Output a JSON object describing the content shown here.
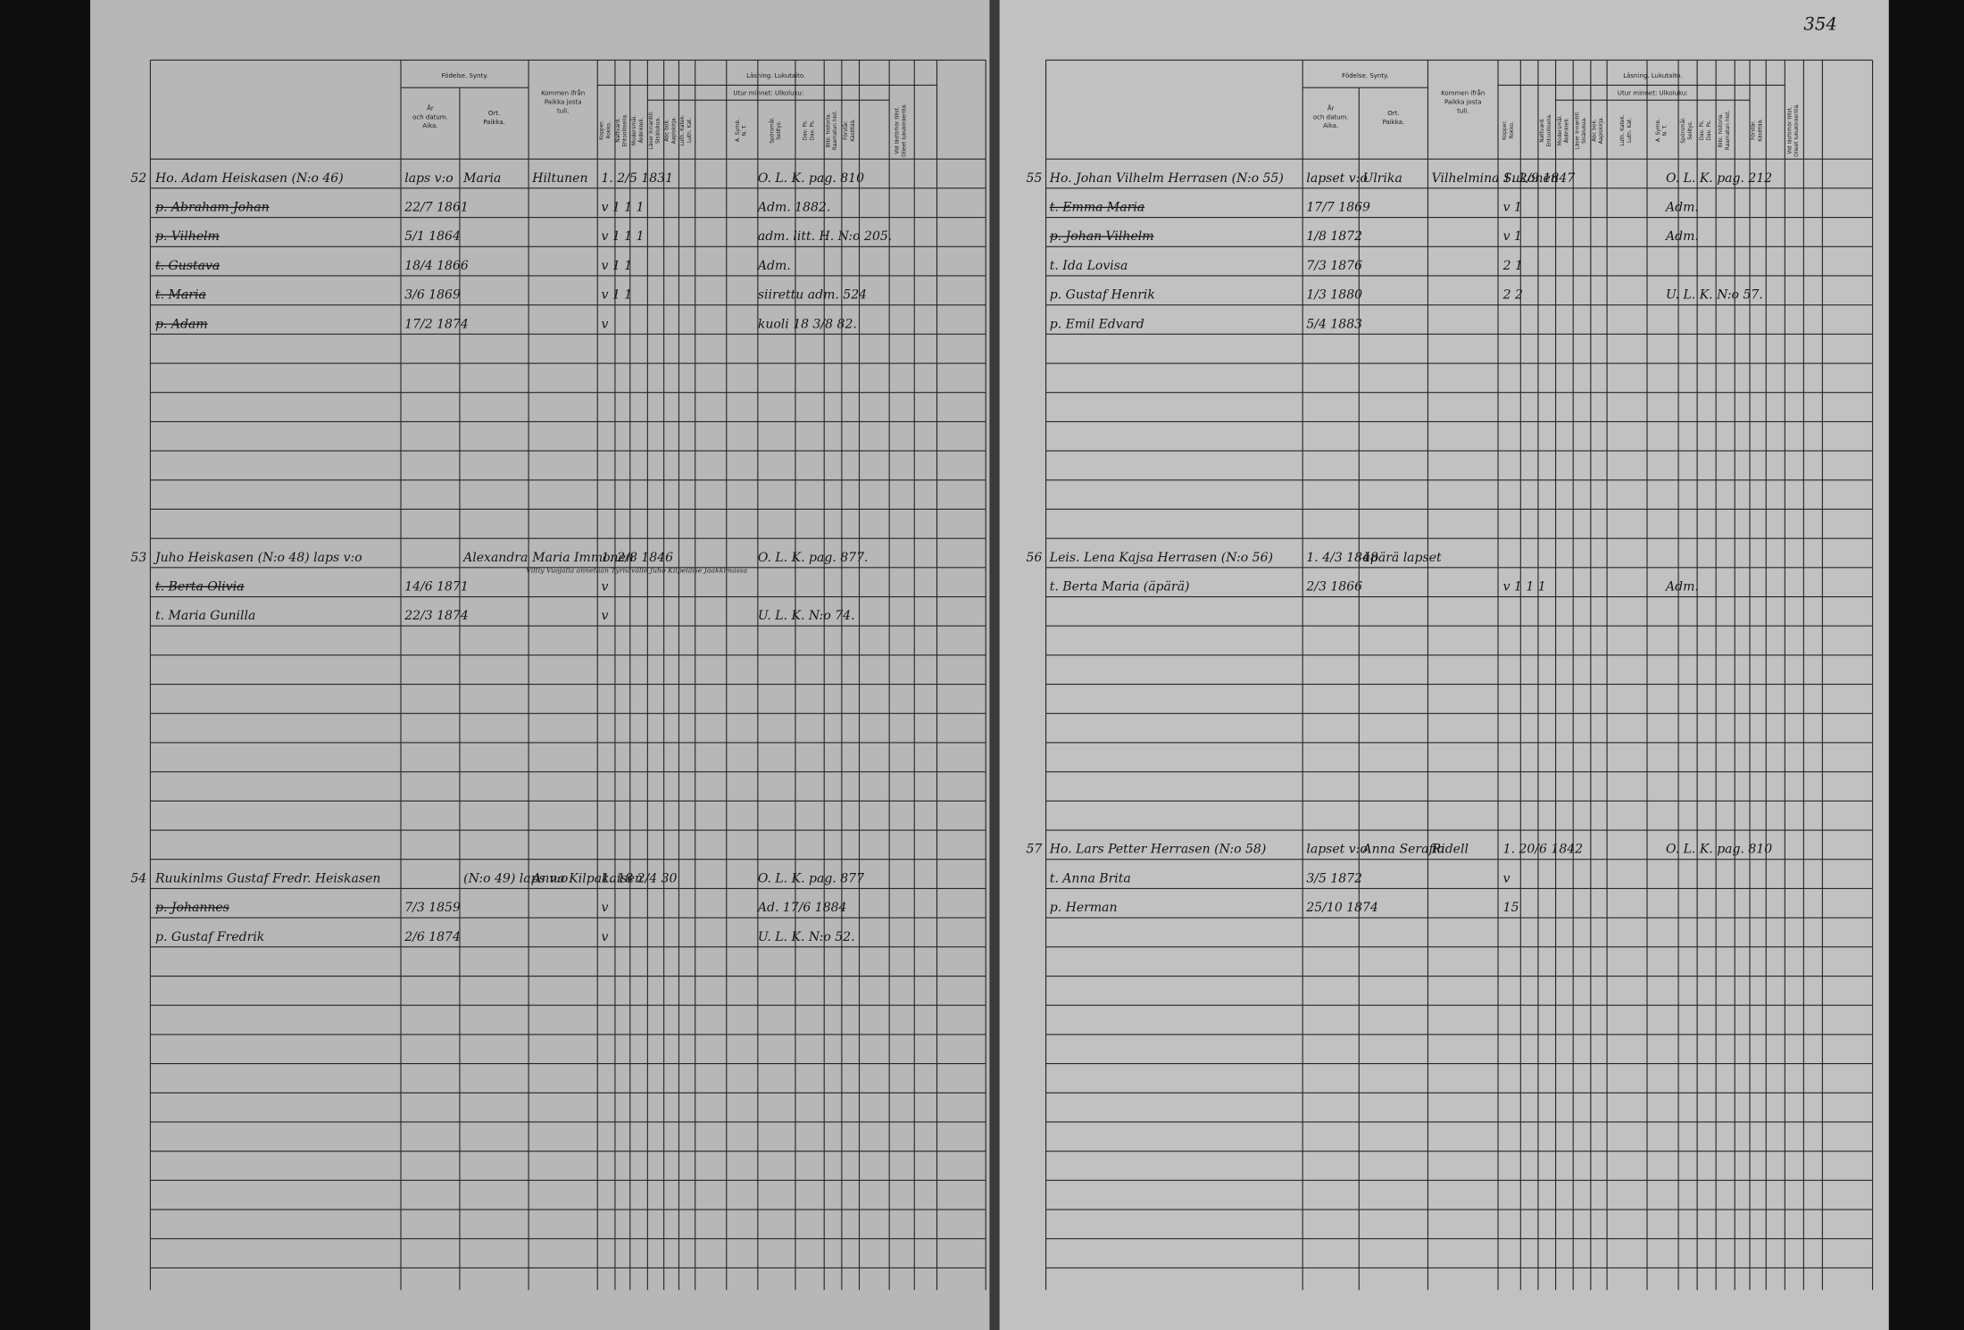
{
  "page_number": "354",
  "headers": {
    "birth": "Födelse. Synty.",
    "date": [
      "År",
      "och datum.",
      "Aika."
    ],
    "place": [
      "Ort.",
      "Paikka."
    ],
    "origin": [
      "Kommen ifrån",
      "Paikka josta",
      "tuli."
    ],
    "reading": "Läsning. Lukutaito.",
    "memory": "Utur minnet: Ulkoluku:",
    "vertical": [
      [
        "Kopper.",
        "Rokko."
      ],
      [
        "Nattvard.",
        "Ehtoollisella."
      ],
      [
        "Modersmål.",
        "Äidinkieli."
      ],
      [
        "Läser innantill.",
        "Sisälukua."
      ],
      [
        "Abc bok.",
        "Aapiskirja."
      ],
      [
        "Luth. Katek.",
        "Luth. Kat."
      ],
      [
        "A. Symb.",
        "N. T."
      ],
      [
        "Spörsmål.",
        "Selitys."
      ],
      [
        "Dav. Ps.",
        "Dav. Ps."
      ],
      [
        "Bibl. historia.",
        "Raamatun hist."
      ],
      [
        "Förstår.",
        "Käsittää."
      ],
      [
        "Vid läsförhör tillst.",
        "Olleet lukukinkerillä."
      ]
    ]
  },
  "left_page": {
    "entries": [
      {
        "number": "52",
        "rows": [
          {
            "name": "Ho. Adam Heiskasen (N:o 46)",
            "date": "laps v:o",
            "place": "Maria",
            "origin": "Hiltunen",
            "reading": "1. 2/5 1831",
            "notes": "O. L. K. pag. 810"
          },
          {
            "name": "p. Abraham Johan",
            "struck": true,
            "date": "22/7 1861",
            "reading": "v    1  1  1",
            "notes": "Adm. 1882."
          },
          {
            "name": "p. Vilhelm",
            "struck": true,
            "date": "5/1 1864",
            "reading": "v    1  1  1",
            "notes": "adm. litt. H. N:o 205."
          },
          {
            "name": "t. Gustava",
            "struck": true,
            "date": "18/4 1866",
            "reading": "v    1  1",
            "notes": "Adm."
          },
          {
            "name": "t. Maria",
            "struck": true,
            "date": "3/6 1869",
            "reading": "v    1  1",
            "notes": "siirettu adm. 524"
          },
          {
            "name": "p. Adam",
            "struck": true,
            "date": "17/2 1874",
            "reading": "v",
            "notes": "kuoli 18 3/8 82."
          }
        ]
      },
      {
        "number": "53",
        "rows": [
          {
            "name": "Juho Heiskasen (N:o 48) laps v:o",
            "place": "Alexandra",
            "origin": "Maria Immonen",
            "reading": "1. 2/8 1846",
            "notes": "O. L. K. pag. 877.",
            "remark": "Viltiy Vuojalla annetaan Tyrnävälle Juho Kilpeläise Jaakkimassa"
          },
          {
            "name": "t. Berta Olivia",
            "struck": true,
            "date": "14/6 1871",
            "reading": "v"
          },
          {
            "name": "t. Maria Gunilla",
            "date": "22/3 1874",
            "reading": "v",
            "notes": "U. L. K. N:o 74."
          }
        ]
      },
      {
        "number": "54",
        "rows": [
          {
            "name": "Ruukinlms Gustaf Fredr. Heiskasen",
            "place": "(N:o 49) laps v:o",
            "origin": "Anna Kilpakaisen",
            "reading": "1. 18 2/4 30",
            "notes": "O. L. K. pag. 877"
          },
          {
            "name": "p. Johannes",
            "struck": true,
            "date": "7/3 1859",
            "reading": "v",
            "notes": "Ad. 17/6 1884"
          },
          {
            "name": "p. Gustaf Fredrik",
            "date": "2/6 1874",
            "reading": "v",
            "notes": "U. L. K. N:o 52."
          }
        ]
      }
    ]
  },
  "right_page": {
    "entries": [
      {
        "number": "55",
        "rows": [
          {
            "name": "Ho. Johan Vilhelm Herrasen (N:o 55)",
            "date": "lapset v:o",
            "place": "Ulrika",
            "origin": "Vilhelmina Sukonen",
            "reading": "1. 2/9 1847",
            "notes": "O. L. K. pag. 212"
          },
          {
            "name": "t. Emma Maria",
            "struck": true,
            "date": "17/7 1869",
            "reading": "v    1",
            "notes": "Adm."
          },
          {
            "name": "p. Johan Vilhelm",
            "struck": true,
            "date": "1/8 1872",
            "reading": "v    1",
            "notes": "Adm."
          },
          {
            "name": "t. Ida Lovisa",
            "date": "7/3 1876",
            "reading": "2    1"
          },
          {
            "name": "p. Gustaf Henrik",
            "date": "1/3 1880",
            "reading": "2  2",
            "notes": "U. L. K. N:o 57."
          },
          {
            "name": "p. Emil Edvard",
            "date": "5/4 1883"
          }
        ]
      },
      {
        "number": "56",
        "rows": [
          {
            "name": "Leis. Lena Kajsa Herrasen (N:o 56)",
            "date": "1. 4/3 1848",
            "place": "äpärä lapset"
          },
          {
            "name": "t. Berta Maria (äpärä)",
            "date": "2/3 1866",
            "reading": "v    1  1  1",
            "notes": "Adm."
          }
        ]
      },
      {
        "number": "57",
        "rows": [
          {
            "name": "Ho. Lars Petter Herrasen (N:o 58)",
            "date": "lapset v:o",
            "place": "Anna Serafia",
            "origin": "Ridell",
            "reading": "1. 20/6 1842",
            "notes": "O. L. K. pag. 810"
          },
          {
            "name": "t. Anna Brita",
            "date": "3/5 1872",
            "reading": "v"
          },
          {
            "name": "p. Herman",
            "date": "25/10 1874",
            "reading": "15"
          }
        ]
      }
    ]
  }
}
